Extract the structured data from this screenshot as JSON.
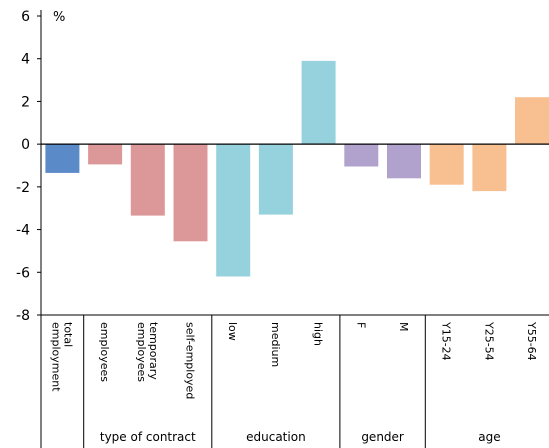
{
  "chart_data": {
    "type": "bar",
    "unit": "%",
    "ylim": [
      -8,
      6
    ],
    "yticks": [
      6,
      4,
      2,
      0,
      -2,
      -4,
      -6,
      -8
    ],
    "grid": false,
    "categories": [
      {
        "label": "total employment",
        "value": -1.35,
        "color": "#5a8bc8"
      },
      {
        "label": "employees",
        "value": -0.95,
        "color": "#dc9898"
      },
      {
        "label": "temporary employees",
        "value": -3.35,
        "color": "#dc9898"
      },
      {
        "label": "self-employed",
        "value": -4.55,
        "color": "#dc9898"
      },
      {
        "label": "low",
        "value": -6.2,
        "color": "#96d1de"
      },
      {
        "label": "medium",
        "value": -3.3,
        "color": "#96d1de"
      },
      {
        "label": "high",
        "value": 3.9,
        "color": "#96d1de"
      },
      {
        "label": "F",
        "value": -1.05,
        "color": "#b0a2cc"
      },
      {
        "label": "M",
        "value": -1.6,
        "color": "#b0a2cc"
      },
      {
        "label": "Y15-24",
        "value": -1.9,
        "color": "#f8bf90"
      },
      {
        "label": "Y25-54",
        "value": -2.2,
        "color": "#f8bf90"
      },
      {
        "label": "Y55-64",
        "value": 2.2,
        "color": "#f8bf90"
      }
    ],
    "groups": [
      {
        "label": "",
        "from": 0,
        "to": 0
      },
      {
        "label": "type of contract",
        "from": 1,
        "to": 3
      },
      {
        "label": "education",
        "from": 4,
        "to": 6
      },
      {
        "label": "gender",
        "from": 7,
        "to": 8
      },
      {
        "label": "age",
        "from": 9,
        "to": 11
      }
    ]
  }
}
